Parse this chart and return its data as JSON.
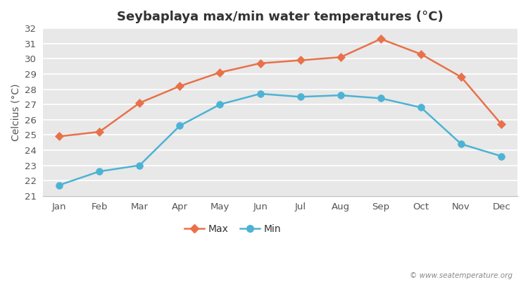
{
  "title": "Seybaplaya max/min water temperatures (°C)",
  "ylabel": "Celcius (°C)",
  "months": [
    "Jan",
    "Feb",
    "Mar",
    "Apr",
    "May",
    "Jun",
    "Jul",
    "Aug",
    "Sep",
    "Oct",
    "Nov",
    "Dec"
  ],
  "max_values": [
    24.9,
    25.2,
    27.1,
    28.2,
    29.1,
    29.7,
    29.9,
    30.1,
    31.3,
    30.3,
    28.8,
    25.7
  ],
  "min_values": [
    21.7,
    22.6,
    23.0,
    25.6,
    27.0,
    27.7,
    27.5,
    27.6,
    27.4,
    26.8,
    24.4,
    23.6
  ],
  "max_color": "#e8714a",
  "min_color": "#4db3d4",
  "fig_bg_color": "#ffffff",
  "plot_bg_color": "#e8e8e8",
  "grid_color": "#ffffff",
  "ylim": [
    21,
    32
  ],
  "yticks": [
    21,
    22,
    23,
    24,
    25,
    26,
    27,
    28,
    29,
    30,
    31,
    32
  ],
  "legend_labels": [
    "Max",
    "Min"
  ],
  "watermark": "© www.seatemperature.org",
  "title_fontsize": 13,
  "label_fontsize": 10,
  "tick_fontsize": 9.5,
  "legend_fontsize": 10,
  "line_width": 1.8,
  "max_marker": "D",
  "min_marker": "o",
  "max_marker_size": 6,
  "min_marker_size": 7
}
